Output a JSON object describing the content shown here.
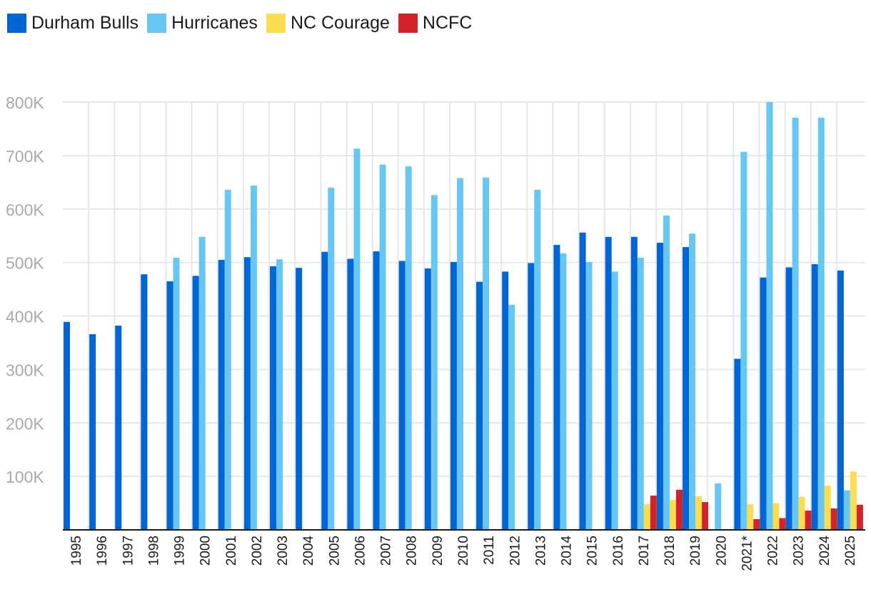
{
  "chart_data": {
    "type": "bar",
    "title": "",
    "xlabel": "",
    "ylabel": "",
    "ylim": [
      0,
      800000
    ],
    "yticks": [
      {
        "value": 100000,
        "label": "100K"
      },
      {
        "value": 200000,
        "label": "200K"
      },
      {
        "value": 300000,
        "label": "300K"
      },
      {
        "value": 400000,
        "label": "400K"
      },
      {
        "value": 500000,
        "label": "500K"
      },
      {
        "value": 600000,
        "label": "600K"
      },
      {
        "value": 700000,
        "label": "700K"
      },
      {
        "value": 800000,
        "label": "800K"
      }
    ],
    "grid": true,
    "legend_position": "top-left",
    "categories": [
      "1995",
      "1996",
      "1997",
      "1998",
      "1999",
      "2000",
      "2001",
      "2002",
      "2003",
      "2004",
      "2005",
      "2006",
      "2007",
      "2008",
      "2009",
      "2010",
      "2011",
      "2012",
      "2013",
      "2014",
      "2015",
      "2016",
      "2017",
      "2018",
      "2019",
      "2020",
      "2021*",
      "2022",
      "2023",
      "2024",
      "2025"
    ],
    "series": [
      {
        "name": "Durham Bulls",
        "color": "#0066d6",
        "values": [
          389000,
          366000,
          382000,
          478000,
          465000,
          475000,
          505000,
          510000,
          493000,
          490000,
          520000,
          507000,
          521000,
          503000,
          489000,
          501000,
          464000,
          483000,
          499000,
          533000,
          556000,
          548000,
          548000,
          537000,
          529000,
          null,
          320000,
          472000,
          491000,
          497000,
          485000
        ]
      },
      {
        "name": "Hurricanes",
        "color": "#66c7f2",
        "values": [
          null,
          null,
          null,
          null,
          509000,
          548000,
          636000,
          644000,
          506000,
          null,
          640000,
          713000,
          683000,
          680000,
          626000,
          658000,
          659000,
          421000,
          636000,
          517000,
          501000,
          483000,
          509000,
          588000,
          554000,
          87000,
          707000,
          800000,
          771000,
          771000,
          74000
        ]
      },
      {
        "name": "NC Courage",
        "color": "#fcdc50",
        "values": [
          null,
          null,
          null,
          null,
          null,
          null,
          null,
          null,
          null,
          null,
          null,
          null,
          null,
          null,
          null,
          null,
          null,
          null,
          null,
          null,
          null,
          null,
          48000,
          56000,
          63000,
          null,
          48000,
          50000,
          62000,
          83000,
          109000
        ]
      },
      {
        "name": "NCFC",
        "color": "#d2232a",
        "values": [
          null,
          null,
          null,
          null,
          null,
          null,
          null,
          null,
          null,
          null,
          null,
          null,
          null,
          null,
          null,
          null,
          null,
          null,
          null,
          null,
          null,
          null,
          64000,
          75000,
          52000,
          null,
          20000,
          22000,
          36000,
          40000,
          47000
        ]
      }
    ]
  }
}
